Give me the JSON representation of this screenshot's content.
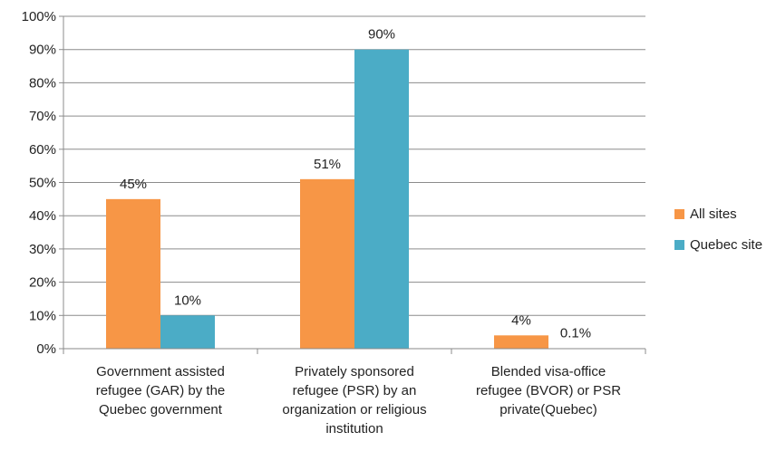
{
  "chart_data": {
    "type": "bar",
    "categories": [
      "Government assisted refugee (GAR)  by the Quebec government",
      "Privately sponsored refugee (PSR) by an organization or religious institution",
      "Blended visa-office refugee (BVOR) or PSR private(Quebec)"
    ],
    "category_lines": [
      [
        "Government assisted",
        "refugee (GAR)  by the",
        "Quebec government"
      ],
      [
        "Privately sponsored",
        "refugee (PSR) by an",
        "organization or religious",
        "institution"
      ],
      [
        "Blended visa-office",
        "refugee (BVOR) or PSR",
        "private(Quebec)"
      ]
    ],
    "series": [
      {
        "name": "All sites",
        "values": [
          45,
          51,
          4
        ],
        "labels": [
          "45%",
          "51%",
          "4%"
        ],
        "color": "#F79646"
      },
      {
        "name": "Quebec site",
        "values": [
          10,
          90,
          0.1
        ],
        "labels": [
          "10%",
          "90%",
          "0.1%"
        ],
        "color": "#4BACC6"
      }
    ],
    "ylim": [
      0,
      100
    ],
    "yticks": [
      "0%",
      "10%",
      "20%",
      "30%",
      "40%",
      "50%",
      "60%",
      "70%",
      "80%",
      "90%",
      "100%"
    ],
    "grid": true,
    "legend_position": "right",
    "title": "",
    "xlabel": "",
    "ylabel": ""
  }
}
